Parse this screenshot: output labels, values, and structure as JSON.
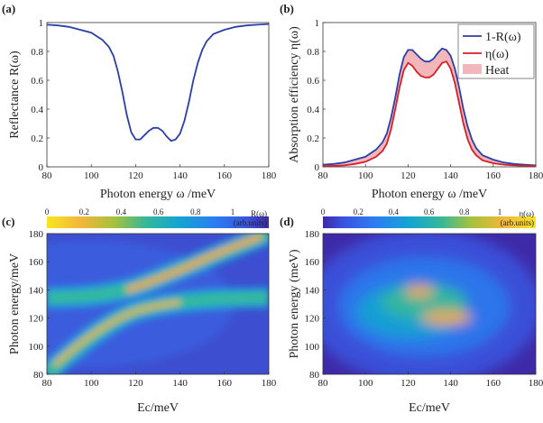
{
  "chart_data": [
    {
      "panel": "(a)",
      "type": "line",
      "xlabel": "Photon energy ω /meV",
      "ylabel": "Reflectance R(ω)",
      "xlim": [
        80,
        180
      ],
      "ylim": [
        0,
        1
      ],
      "xticks": [
        "80",
        "100",
        "120",
        "140",
        "160",
        "180"
      ],
      "yticks": [
        "0",
        "0.2",
        "0.4",
        "0.6",
        "0.8",
        "1"
      ],
      "grid": false,
      "series": [
        {
          "color": "#2b3fa8",
          "x": [
            80,
            85,
            90,
            95,
            100,
            105,
            108,
            110,
            112,
            114,
            116,
            118,
            120,
            122,
            124,
            126,
            128,
            130,
            132,
            134,
            136,
            138,
            140,
            142,
            144,
            146,
            148,
            150,
            152,
            155,
            160,
            165,
            170,
            175,
            180
          ],
          "y": [
            0.985,
            0.98,
            0.97,
            0.95,
            0.93,
            0.88,
            0.83,
            0.77,
            0.66,
            0.52,
            0.36,
            0.24,
            0.19,
            0.19,
            0.22,
            0.25,
            0.27,
            0.27,
            0.25,
            0.21,
            0.18,
            0.19,
            0.23,
            0.32,
            0.45,
            0.6,
            0.72,
            0.81,
            0.87,
            0.92,
            0.95,
            0.97,
            0.98,
            0.985,
            0.99
          ]
        }
      ]
    },
    {
      "panel": "(b)",
      "type": "line",
      "xlabel": "Photon energy ω /meV",
      "ylabel": "Absorption efficiency η(ω)",
      "xlim": [
        80,
        180
      ],
      "ylim": [
        0,
        1
      ],
      "xticks": [
        "80",
        "100",
        "120",
        "140",
        "160",
        "180"
      ],
      "yticks": [
        "0",
        "0.2",
        "0.4",
        "0.6",
        "0.8",
        "1"
      ],
      "legend_position": "top-right",
      "series": [
        {
          "name": "1-R(ω)",
          "color": "#2b3fa8",
          "x": [
            80,
            85,
            90,
            95,
            100,
            105,
            108,
            110,
            112,
            114,
            116,
            118,
            120,
            122,
            124,
            126,
            128,
            130,
            132,
            134,
            136,
            138,
            140,
            142,
            144,
            146,
            148,
            150,
            152,
            155,
            160,
            165,
            170,
            175,
            180
          ],
          "y": [
            0.015,
            0.02,
            0.03,
            0.05,
            0.07,
            0.12,
            0.17,
            0.23,
            0.34,
            0.48,
            0.64,
            0.76,
            0.81,
            0.81,
            0.78,
            0.75,
            0.73,
            0.73,
            0.75,
            0.79,
            0.82,
            0.81,
            0.77,
            0.68,
            0.55,
            0.4,
            0.28,
            0.19,
            0.13,
            0.08,
            0.05,
            0.03,
            0.02,
            0.015,
            0.01
          ]
        },
        {
          "name": "η(ω)",
          "color": "#d81f26",
          "x": [
            80,
            85,
            90,
            95,
            100,
            105,
            108,
            110,
            112,
            114,
            116,
            118,
            120,
            122,
            124,
            126,
            128,
            130,
            132,
            134,
            136,
            138,
            140,
            142,
            144,
            146,
            148,
            150,
            152,
            155,
            160,
            165,
            170,
            175,
            180
          ],
          "y": [
            0.005,
            0.007,
            0.01,
            0.02,
            0.035,
            0.07,
            0.11,
            0.16,
            0.26,
            0.4,
            0.55,
            0.67,
            0.72,
            0.7,
            0.66,
            0.63,
            0.62,
            0.62,
            0.64,
            0.68,
            0.72,
            0.73,
            0.68,
            0.58,
            0.44,
            0.3,
            0.19,
            0.12,
            0.08,
            0.045,
            0.025,
            0.015,
            0.01,
            0.007,
            0.005
          ]
        }
      ],
      "fill_between": {
        "name": "Heat",
        "color": "#f3b6bb"
      }
    },
    {
      "panel": "(c)",
      "type": "heatmap",
      "xlabel": "Ec/meV",
      "ylabel": "Photon energy/meV",
      "xlim": [
        80,
        180
      ],
      "ylim": [
        80,
        180
      ],
      "xticks": [
        "80",
        "100",
        "120",
        "140",
        "160",
        "180"
      ],
      "yticks": [
        "80",
        "100",
        "120",
        "140",
        "160",
        "180"
      ],
      "colorbar": {
        "ticks": [
          "0",
          "0.2",
          "0.4",
          "0.6",
          "0.8",
          "1"
        ],
        "label": "R(ω)",
        "units": "(arb.units)",
        "reversed": true
      }
    },
    {
      "panel": "(d)",
      "type": "heatmap",
      "xlabel": "Ec/meV",
      "ylabel": "Photon energy (meV)",
      "xlim": [
        80,
        180
      ],
      "ylim": [
        80,
        180
      ],
      "xticks": [
        "80",
        "100",
        "120",
        "140",
        "160",
        "180"
      ],
      "yticks": [
        "80",
        "100",
        "120",
        "140",
        "160",
        "180"
      ],
      "colorbar": {
        "ticks": [
          "0",
          "0.2",
          "0.4",
          "0.6",
          "0.8",
          "1"
        ],
        "label": "η(ω)",
        "units": "(arb.units)",
        "reversed": false
      }
    }
  ]
}
